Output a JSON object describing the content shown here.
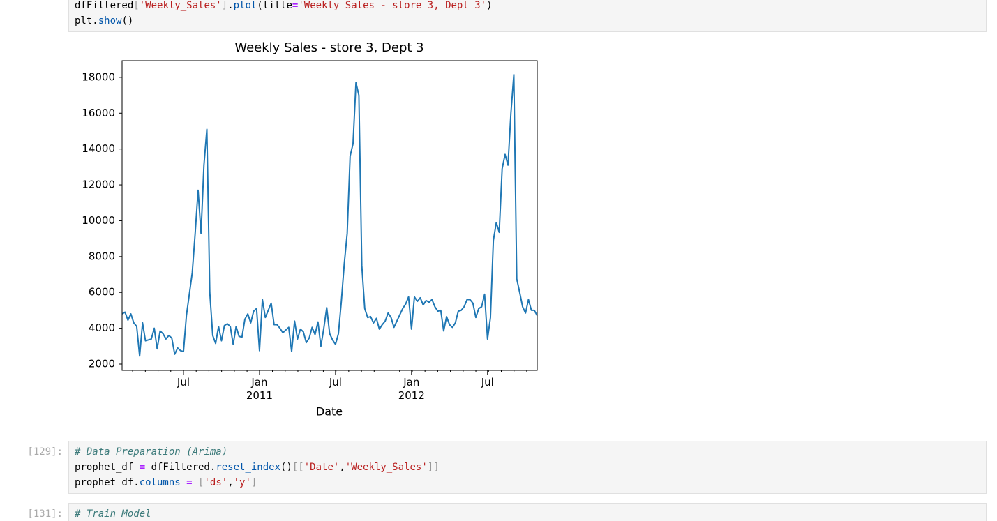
{
  "cells": [
    {
      "lines": [
        [
          {
            "text": "dfFiltered"
          },
          {
            "text": "[",
            "color": "#999999"
          },
          {
            "text": "'Weekly_Sales'",
            "color": "#ba2121"
          },
          {
            "text": "]",
            "color": "#999999"
          },
          {
            "text": "."
          },
          {
            "text": "plot",
            "color": "#0055aa"
          },
          {
            "text": "(title"
          },
          {
            "text": "=",
            "color": "#aa22ff",
            "bold": true
          },
          {
            "text": "'Weekly Sales - store 3, Dept 3'",
            "color": "#ba2121"
          },
          {
            "text": ")"
          }
        ],
        [
          {
            "text": "plt."
          },
          {
            "text": "show",
            "color": "#0055aa"
          },
          {
            "text": "()"
          }
        ]
      ]
    },
    {
      "prompt": "[129]:",
      "lines": [
        [
          {
            "text": "# Data Preparation (Arima)",
            "color": "#3d7b7b",
            "italic": true
          }
        ],
        [
          {
            "text": "prophet_df "
          },
          {
            "text": "= ",
            "color": "#aa22ff",
            "bold": true
          },
          {
            "text": "dfFiltered."
          },
          {
            "text": "reset_index",
            "color": "#0055aa"
          },
          {
            "text": "()"
          },
          {
            "text": "[[",
            "color": "#999999"
          },
          {
            "text": "'Date'",
            "color": "#ba2121"
          },
          {
            "text": ","
          },
          {
            "text": "'Weekly_Sales'",
            "color": "#ba2121"
          },
          {
            "text": "]]",
            "color": "#999999"
          }
        ],
        [
          {
            "text": "prophet_df."
          },
          {
            "text": "columns",
            "color": "#0055aa"
          },
          {
            "text": " = ",
            "color": "#aa22ff",
            "bold": true
          },
          {
            "text": "[",
            "color": "#999999"
          },
          {
            "text": "'ds'",
            "color": "#ba2121"
          },
          {
            "text": ","
          },
          {
            "text": "'y'",
            "color": "#ba2121"
          },
          {
            "text": "]",
            "color": "#999999"
          }
        ]
      ]
    },
    {
      "prompt": "[131]:",
      "lines": [
        [
          {
            "text": "# Train Model",
            "color": "#3d7b7b",
            "italic": true
          }
        ]
      ]
    }
  ],
  "chart_data": {
    "type": "line",
    "title": "Weekly Sales - store 3, Dept 3",
    "xlabel": "Date",
    "color": "#1f77b4",
    "categories": [
      null,
      null,
      null,
      null,
      null,
      null,
      null,
      null,
      null,
      null,
      null,
      null,
      null,
      null,
      null,
      null,
      null,
      null,
      null,
      null,
      null,
      "Jul",
      null,
      null,
      null,
      null,
      null,
      null,
      null,
      null,
      null,
      null,
      null,
      null,
      null,
      null,
      null,
      null,
      null,
      null,
      null,
      null,
      null,
      null,
      null,
      null,
      null,
      "Jan\n2011",
      null,
      null,
      null,
      null,
      null,
      null,
      null,
      null,
      null,
      null,
      null,
      null,
      null,
      null,
      null,
      null,
      null,
      null,
      null,
      null,
      null,
      null,
      null,
      null,
      null,
      "Jul",
      null,
      null,
      null,
      null,
      null,
      null,
      null,
      null,
      null,
      null,
      null,
      null,
      null,
      null,
      null,
      null,
      null,
      null,
      null,
      null,
      null,
      null,
      null,
      null,
      null,
      "Jan\n2012",
      null,
      null,
      null,
      null,
      null,
      null,
      null,
      null,
      null,
      null,
      null,
      null,
      null,
      null,
      null,
      null,
      null,
      null,
      null,
      null,
      null,
      null,
      null,
      null,
      null,
      "Jul",
      null,
      null,
      null,
      null,
      null,
      null,
      null,
      null,
      null,
      null,
      null,
      null,
      null,
      null,
      null,
      null,
      null
    ],
    "values": [
      4800,
      4900,
      4450,
      4800,
      4300,
      4100,
      2450,
      4300,
      3300,
      3350,
      3400,
      4000,
      2850,
      3850,
      3700,
      3400,
      3600,
      3450,
      2550,
      2900,
      2750,
      2700,
      4700,
      5900,
      7100,
      9300,
      11700,
      9300,
      13100,
      15100,
      6000,
      3600,
      3150,
      4100,
      3300,
      4150,
      4250,
      4100,
      3100,
      4100,
      3550,
      3500,
      4500,
      4800,
      4300,
      4950,
      5100,
      2750,
      5600,
      4600,
      5000,
      5400,
      4200,
      4200,
      4000,
      3750,
      3900,
      4050,
      2700,
      4400,
      3400,
      3950,
      3800,
      3200,
      3450,
      4050,
      3650,
      4350,
      3000,
      4000,
      5150,
      3700,
      3350,
      3100,
      3700,
      5500,
      7600,
      9300,
      13600,
      14300,
      17700,
      17000,
      7500,
      5100,
      4600,
      4650,
      4300,
      4550,
      3950,
      4200,
      4400,
      4850,
      4600,
      4050,
      4400,
      4750,
      5100,
      5350,
      5750,
      3950,
      5750,
      5500,
      5700,
      5300,
      5550,
      5450,
      5600,
      5200,
      4950,
      5000,
      3850,
      4650,
      4200,
      4050,
      4300,
      4950,
      5000,
      5200,
      5600,
      5600,
      5400,
      4600,
      5100,
      5200,
      5900,
      3400,
      4600,
      8900,
      9900,
      9350,
      12900,
      13700,
      13100,
      16000,
      18150,
      6750,
      6000,
      5200,
      4850,
      5600,
      5000,
      5000,
      4700
    ],
    "ylim": [
      1650,
      18930
    ],
    "yticks": [
      2000,
      4000,
      6000,
      8000,
      10000,
      12000,
      14000,
      16000,
      18000
    ]
  }
}
